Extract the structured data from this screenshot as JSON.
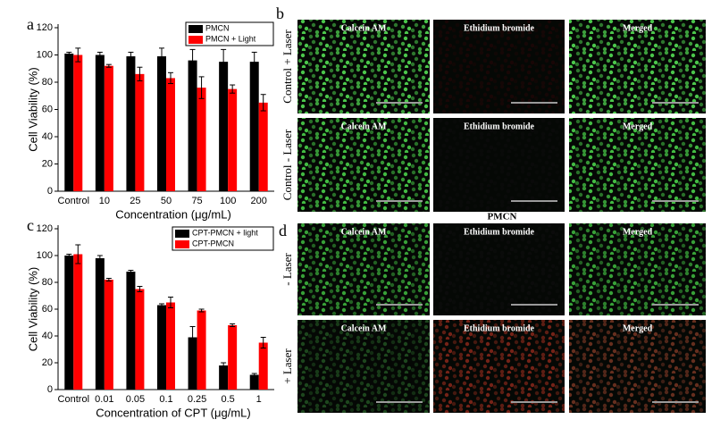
{
  "chart_data": [
    {
      "type": "bar",
      "panel_label": "a",
      "categories": [
        "Control",
        "10",
        "25",
        "50",
        "75",
        "100",
        "200"
      ],
      "series": [
        {
          "name": "PMCN",
          "color": "#000000",
          "values": [
            101,
            100,
            99,
            99,
            96,
            95,
            95
          ],
          "errors": [
            1,
            2,
            3,
            6,
            8,
            9,
            7
          ]
        },
        {
          "name": "PMCN + Light",
          "color": "#ff0000",
          "values": [
            100,
            92,
            86,
            83,
            76,
            75,
            65
          ],
          "errors": [
            5,
            1,
            5,
            4,
            8,
            3,
            6
          ]
        }
      ],
      "ylim": [
        0,
        120
      ],
      "yticks": [
        0,
        20,
        40,
        60,
        80,
        100,
        120
      ],
      "ylabel": "Cell Viability (%)",
      "xlabel": "Concentration (μg/mL)",
      "legend": "upper right"
    },
    {
      "type": "bar",
      "panel_label": "c",
      "categories": [
        "Control",
        "0.01",
        "0.05",
        "0.1",
        "0.25",
        "0.5",
        "1"
      ],
      "series": [
        {
          "name": "CPT-PMCN + light",
          "color": "#000000",
          "values": [
            100,
            98,
            88,
            63,
            39,
            18,
            11
          ],
          "errors": [
            1,
            2,
            1,
            1,
            8,
            2,
            1
          ]
        },
        {
          "name": "CPT-PMCN",
          "color": "#ff0000",
          "values": [
            101,
            82,
            75,
            65,
            59,
            48,
            35
          ],
          "errors": [
            7,
            1,
            2,
            4,
            1,
            1,
            4
          ]
        }
      ],
      "ylim": [
        0,
        120
      ],
      "yticks": [
        0,
        20,
        40,
        60,
        80,
        100,
        120
      ],
      "ylabel": "Cell Viability (%)",
      "xlabel": "Concentration of CPT (μg/mL)",
      "legend": "upper right"
    }
  ],
  "images": [
    {
      "panel_label": "b",
      "rows": [
        {
          "label": "Control + Laser",
          "tiles": [
            {
              "title": "Calcein AM",
              "color": "#4fd04f"
            },
            {
              "title": "Ethidium bromide",
              "color": "#1a0606"
            },
            {
              "title": "Merged",
              "color": "#4fd04f"
            }
          ]
        },
        {
          "label": "Control - Laser",
          "tiles": [
            {
              "title": "Calcein AM",
              "color": "#45c445"
            },
            {
              "title": "Ethidium bromide",
              "color": "#0a0a0a"
            },
            {
              "title": "Merged",
              "color": "#45c445"
            }
          ]
        }
      ],
      "caption": "PMCN"
    },
    {
      "panel_label": "d",
      "rows": [
        {
          "label": "- Laser",
          "tiles": [
            {
              "title": "Calcein AM",
              "color": "#3aa83a"
            },
            {
              "title": "Ethidium bromide",
              "color": "#0c0c0c"
            },
            {
              "title": "Merged",
              "color": "#3aa83a"
            }
          ]
        },
        {
          "label": "+ Laser",
          "tiles": [
            {
              "title": "Calcein AM",
              "color": "#1f4a1f"
            },
            {
              "title": "Ethidium bromide",
              "color": "#7a2418"
            },
            {
              "title": "Merged",
              "color": "#6a3020"
            }
          ]
        }
      ]
    }
  ]
}
